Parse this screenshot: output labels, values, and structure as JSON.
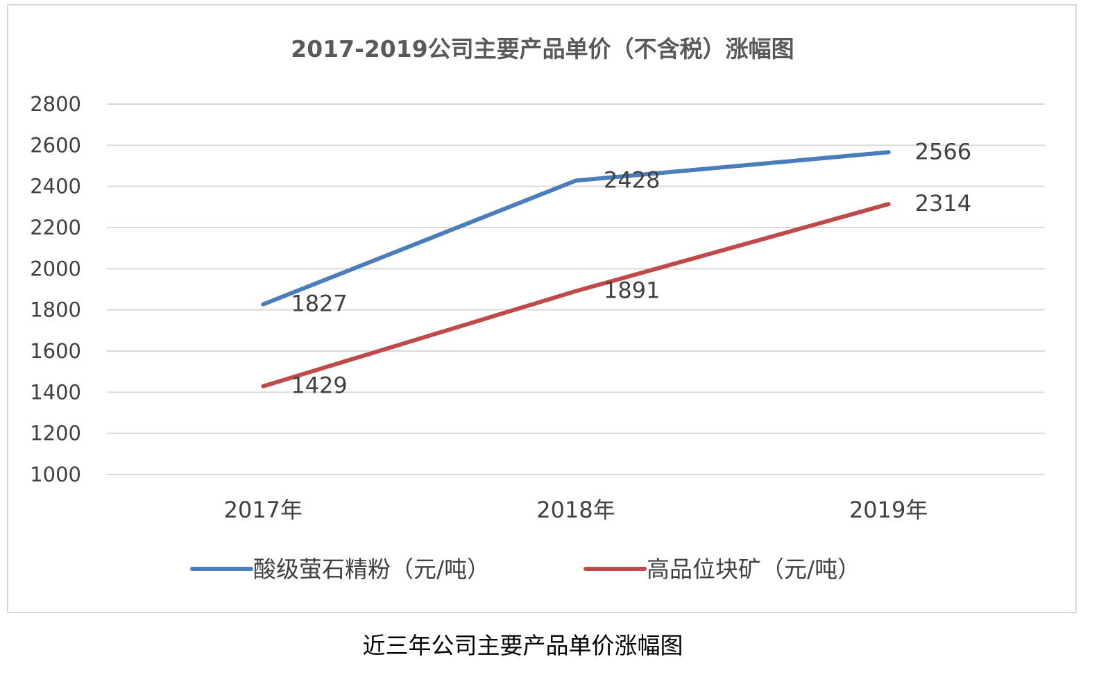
{
  "chart_data": {
    "type": "line",
    "title": "2017-2019公司主要产品单价（不含税）涨幅图",
    "categories": [
      "2017年",
      "2018年",
      "2019年"
    ],
    "series": [
      {
        "name": "酸级萤石精粉（元/吨）",
        "values": [
          1827,
          2428,
          2566
        ],
        "color": "#4a7ebb"
      },
      {
        "name": "高品位块矿（元/吨）",
        "values": [
          1429,
          1891,
          2314
        ],
        "color": "#be4b48"
      }
    ],
    "ylim": [
      1000,
      2800
    ],
    "yticks": [
      1000,
      1200,
      1400,
      1600,
      1800,
      2000,
      2200,
      2400,
      2600,
      2800
    ],
    "grid": true,
    "legend_position": "bottom",
    "data_labels": true
  },
  "caption": "近三年公司主要产品单价涨幅图"
}
